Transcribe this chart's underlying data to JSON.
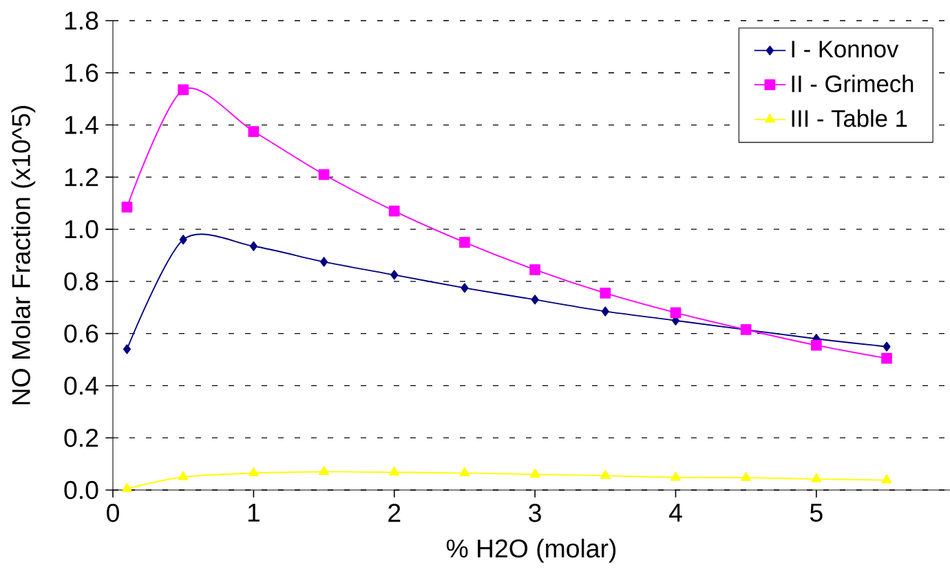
{
  "chart_data": {
    "type": "line",
    "xlabel": "% H2O (molar)",
    "ylabel": "NO Molar Fraction (x10^5)",
    "x": [
      0.1,
      0.5,
      1,
      1.5,
      2,
      2.5,
      3,
      3.5,
      4,
      4.5,
      5,
      5.5
    ],
    "series": [
      {
        "name": "I - Konnov",
        "color": "#000080",
        "marker": "diamond",
        "values": [
          0.54,
          0.96,
          0.935,
          0.875,
          0.825,
          0.775,
          0.73,
          0.685,
          0.65,
          null,
          0.58,
          0.55
        ]
      },
      {
        "name": "II - Grimech",
        "color": "#ff00ff",
        "marker": "square",
        "values": [
          1.085,
          1.535,
          1.375,
          1.21,
          1.07,
          0.95,
          0.845,
          0.755,
          0.68,
          0.615,
          0.555,
          0.505
        ]
      },
      {
        "name": "III - Table 1",
        "color": "#ffff00",
        "marker": "triangle",
        "values": [
          0.005,
          0.05,
          0.065,
          0.07,
          0.068,
          0.065,
          0.06,
          0.055,
          0.048,
          0.047,
          0.042,
          0.038
        ]
      }
    ],
    "xlim": [
      0,
      5.95
    ],
    "ylim": [
      0,
      1.8
    ],
    "xticks": [
      0,
      1,
      2,
      3,
      4,
      5
    ],
    "yticks": [
      {
        "value": 0,
        "label": "0.0"
      },
      {
        "value": 0.2,
        "label": "0.2"
      },
      {
        "value": 0.4,
        "label": "0.4"
      },
      {
        "value": 0.6,
        "label": "0.6"
      },
      {
        "value": 0.8,
        "label": "0.8"
      },
      {
        "value": 1.0,
        "label": "1.0"
      },
      {
        "value": 1.2,
        "label": "1.2"
      },
      {
        "value": 1.4,
        "label": "1.4"
      },
      {
        "value": 1.6,
        "label": "1.6"
      },
      {
        "value": 1.8,
        "label": "1.8"
      }
    ],
    "grid": "y",
    "legend": "top right"
  }
}
